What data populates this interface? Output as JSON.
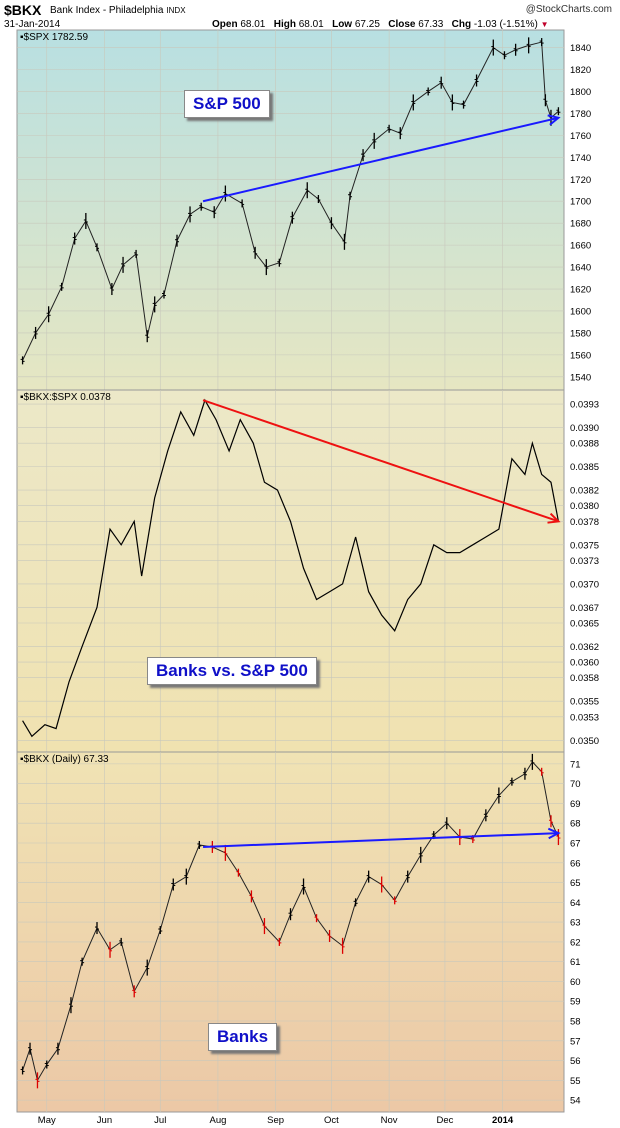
{
  "header": {
    "symbol": "$BKX",
    "name": "Bank Index - Philadelphia",
    "exchange": "INDX",
    "date": "31-Jan-2014",
    "watermark": "@StockCharts.com",
    "open_label": "Open",
    "open": "68.01",
    "high_label": "High",
    "high": "68.01",
    "low_label": "Low",
    "low": "67.25",
    "close_label": "Close",
    "close": "67.33",
    "chg_label": "Chg",
    "chg": "-1.03 (-1.51%)",
    "chg_marker": "▼"
  },
  "annotations": {
    "spx": "S&P 500",
    "ratio": "Banks vs. S&P 500",
    "bkx": "Banks"
  },
  "colors": {
    "price_up": "#000000",
    "price_down_bkx": "#dd0000",
    "trend_blue": "#1a1aff",
    "trend_red": "#ee1111"
  },
  "chart_data": [
    {
      "type": "line",
      "label": "$SPX 1782.59",
      "x_ticks": [
        "May",
        "Jun",
        "Jul",
        "Aug",
        "Sep",
        "Oct",
        "Nov",
        "Dec",
        "2014"
      ],
      "ylim": [
        1528,
        1856
      ],
      "y_ticks": [
        1540,
        1560,
        1580,
        1600,
        1620,
        1640,
        1660,
        1680,
        1700,
        1720,
        1740,
        1760,
        1780,
        1800,
        1820,
        1840
      ],
      "x": [
        "2013-04-18",
        "2013-04-25",
        "2013-05-02",
        "2013-05-09",
        "2013-05-16",
        "2013-05-22",
        "2013-05-28",
        "2013-06-05",
        "2013-06-11",
        "2013-06-18",
        "2013-06-24",
        "2013-06-28",
        "2013-07-03",
        "2013-07-10",
        "2013-07-17",
        "2013-07-23",
        "2013-07-30",
        "2013-08-05",
        "2013-08-14",
        "2013-08-21",
        "2013-08-27",
        "2013-09-03",
        "2013-09-10",
        "2013-09-18",
        "2013-09-24",
        "2013-10-01",
        "2013-10-08",
        "2013-10-11",
        "2013-10-18",
        "2013-10-24",
        "2013-11-01",
        "2013-11-07",
        "2013-11-14",
        "2013-11-22",
        "2013-11-29",
        "2013-12-05",
        "2013-12-11",
        "2013-12-18",
        "2013-12-27",
        "2014-01-02",
        "2014-01-08",
        "2014-01-15",
        "2014-01-22",
        "2014-01-24",
        "2014-01-27",
        "2014-01-31"
      ],
      "values": [
        1555,
        1580,
        1597,
        1622,
        1666,
        1682,
        1658,
        1620,
        1642,
        1652,
        1577,
        1606,
        1615,
        1664,
        1688,
        1695,
        1690,
        1707,
        1698,
        1653,
        1640,
        1644,
        1685,
        1710,
        1702,
        1680,
        1663,
        1705,
        1742,
        1755,
        1766,
        1762,
        1790,
        1800,
        1808,
        1790,
        1788,
        1810,
        1840,
        1833,
        1838,
        1842,
        1845,
        1792,
        1776,
        1782
      ],
      "trendline": {
        "x": [
          "2013-07-24",
          "2014-01-31"
        ],
        "y": [
          1700,
          1776
        ]
      }
    },
    {
      "type": "line",
      "label": "$BKX:$SPX 0.0378",
      "x_ticks": [
        "May",
        "Jun",
        "Jul",
        "Aug",
        "Sep",
        "Oct",
        "Nov",
        "Dec",
        "2014"
      ],
      "ylim": [
        0.03485,
        0.03948
      ],
      "y_ticks": [
        "0.0350",
        "0.0353",
        "0.0355",
        "0.0358",
        "0.0360",
        "0.0362",
        "0.0365",
        "0.0367",
        "0.0370",
        "0.0373",
        "0.0375",
        "0.0378",
        "0.0380",
        "0.0382",
        "0.0385",
        "0.0388",
        "0.0390",
        "0.0393"
      ],
      "x": [
        "2013-04-18",
        "2013-04-23",
        "2013-04-30",
        "2013-05-06",
        "2013-05-13",
        "2013-05-20",
        "2013-05-28",
        "2013-06-04",
        "2013-06-10",
        "2013-06-17",
        "2013-06-21",
        "2013-06-28",
        "2013-07-05",
        "2013-07-12",
        "2013-07-19",
        "2013-07-25",
        "2013-07-31",
        "2013-08-07",
        "2013-08-13",
        "2013-08-20",
        "2013-08-26",
        "2013-09-02",
        "2013-09-09",
        "2013-09-16",
        "2013-09-23",
        "2013-09-30",
        "2013-10-07",
        "2013-10-14",
        "2013-10-21",
        "2013-10-28",
        "2013-11-04",
        "2013-11-11",
        "2013-11-18",
        "2013-11-25",
        "2013-12-02",
        "2013-12-09",
        "2013-12-16",
        "2013-12-23",
        "2013-12-30",
        "2014-01-06",
        "2014-01-13",
        "2014-01-17",
        "2014-01-22",
        "2014-01-27",
        "2014-01-31"
      ],
      "values": [
        0.03525,
        0.03505,
        0.0352,
        0.03515,
        0.03575,
        0.0362,
        0.0367,
        0.0377,
        0.0375,
        0.0378,
        0.0371,
        0.0381,
        0.0387,
        0.0392,
        0.0389,
        0.03935,
        0.0391,
        0.0387,
        0.0391,
        0.0388,
        0.0383,
        0.0382,
        0.0378,
        0.0372,
        0.0368,
        0.0369,
        0.037,
        0.0376,
        0.0369,
        0.0366,
        0.0364,
        0.0368,
        0.037,
        0.0375,
        0.0374,
        0.0374,
        0.0375,
        0.0376,
        0.0377,
        0.0386,
        0.0384,
        0.0388,
        0.0384,
        0.0383,
        0.0378
      ],
      "trendline": {
        "x": [
          "2013-07-24",
          "2014-01-31"
        ],
        "y": [
          0.03935,
          0.0378
        ]
      }
    },
    {
      "type": "line",
      "label": "$BKX (Daily) 67.33",
      "x_ticks": [
        "May",
        "Jun",
        "Jul",
        "Aug",
        "Sep",
        "Oct",
        "Nov",
        "Dec",
        "2014"
      ],
      "ylim": [
        53.4,
        71.6
      ],
      "y_ticks": [
        54,
        55,
        56,
        57,
        58,
        59,
        60,
        61,
        62,
        63,
        64,
        65,
        66,
        67,
        68,
        69,
        70,
        71
      ],
      "x": [
        "2013-04-18",
        "2013-04-22",
        "2013-04-26",
        "2013-05-01",
        "2013-05-07",
        "2013-05-14",
        "2013-05-20",
        "2013-05-28",
        "2013-06-04",
        "2013-06-10",
        "2013-06-17",
        "2013-06-24",
        "2013-07-01",
        "2013-07-08",
        "2013-07-15",
        "2013-07-22",
        "2013-07-29",
        "2013-08-05",
        "2013-08-12",
        "2013-08-19",
        "2013-08-26",
        "2013-09-03",
        "2013-09-09",
        "2013-09-16",
        "2013-09-23",
        "2013-09-30",
        "2013-10-07",
        "2013-10-14",
        "2013-10-21",
        "2013-10-28",
        "2013-11-04",
        "2013-11-11",
        "2013-11-18",
        "2013-11-25",
        "2013-12-02",
        "2013-12-09",
        "2013-12-16",
        "2013-12-23",
        "2013-12-30",
        "2014-01-06",
        "2014-01-13",
        "2014-01-17",
        "2014-01-22",
        "2014-01-27",
        "2014-01-31"
      ],
      "values": [
        55.5,
        56.6,
        55.0,
        55.8,
        56.6,
        58.8,
        61.0,
        62.7,
        61.6,
        62.0,
        59.5,
        60.7,
        62.6,
        64.9,
        65.3,
        66.9,
        66.8,
        66.5,
        65.5,
        64.3,
        62.8,
        62.0,
        63.4,
        64.8,
        63.2,
        62.3,
        61.8,
        64.0,
        65.3,
        64.9,
        64.1,
        65.3,
        66.4,
        67.4,
        68.0,
        67.3,
        67.2,
        68.4,
        69.4,
        70.1,
        70.5,
        71.1,
        70.6,
        68.1,
        67.3
      ],
      "trendline": {
        "x": [
          "2013-07-24",
          "2014-01-31"
        ],
        "y": [
          66.8,
          67.5
        ]
      }
    }
  ]
}
